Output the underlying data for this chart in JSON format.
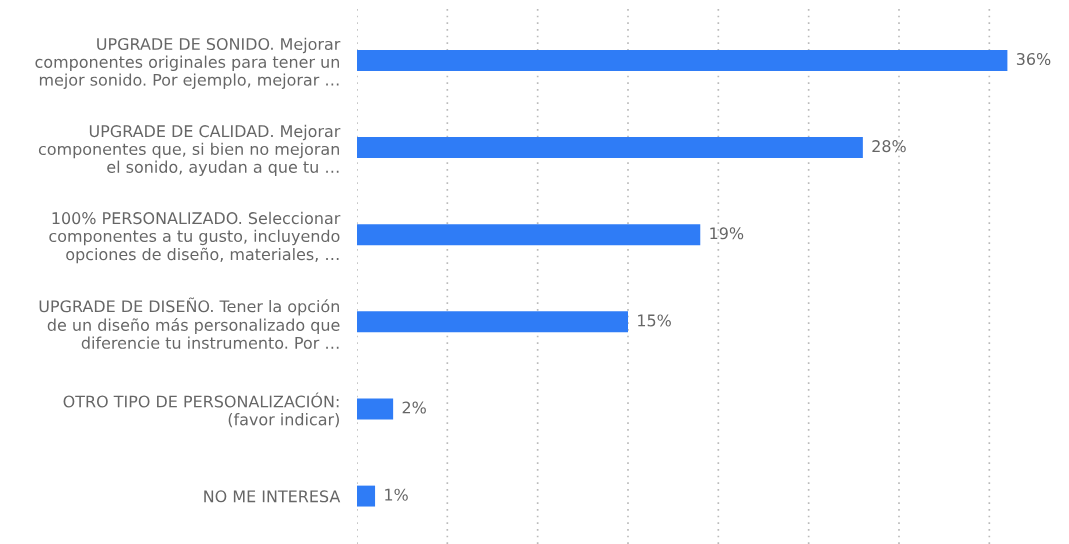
{
  "chart_data": {
    "type": "bar",
    "orientation": "horizontal",
    "categories": [
      "UPGRADE DE SONIDO. Mejorar\ncomponentes originales para tener un\nmejor sonido. Por ejemplo, mejorar …",
      "UPGRADE DE CALIDAD. Mejorar\ncomponentes que, si bien no mejoran\nel sonido, ayudan a que tu …",
      "100% PERSONALIZADO. Seleccionar\ncomponentes a tu gusto, incluyendo\nopciones de diseño, materiales, …",
      "UPGRADE DE DISEÑO. Tener la opción\nde un diseño más personalizado que\ndiferencie tu instrumento. Por …",
      "OTRO TIPO DE PERSONALIZACIÓN:\n(favor indicar)",
      "NO ME INTERESA"
    ],
    "values": [
      36,
      28,
      19,
      15,
      2,
      1
    ],
    "value_labels": [
      "36%",
      "28%",
      "19%",
      "15%",
      "2%",
      "1%"
    ],
    "color": "#2f7cf6",
    "xticks": [
      {
        "value": 0,
        "label": null
      },
      {
        "value": 5,
        "label": null
      },
      {
        "value": 10,
        "label": null
      },
      {
        "value": 15,
        "label": null
      },
      {
        "value": 20,
        "label": null
      },
      {
        "value": 25,
        "label": null
      },
      {
        "value": 30,
        "label": null
      },
      {
        "value": 35,
        "label": null
      }
    ],
    "grid": "x",
    "tick_labels": "y"
  }
}
